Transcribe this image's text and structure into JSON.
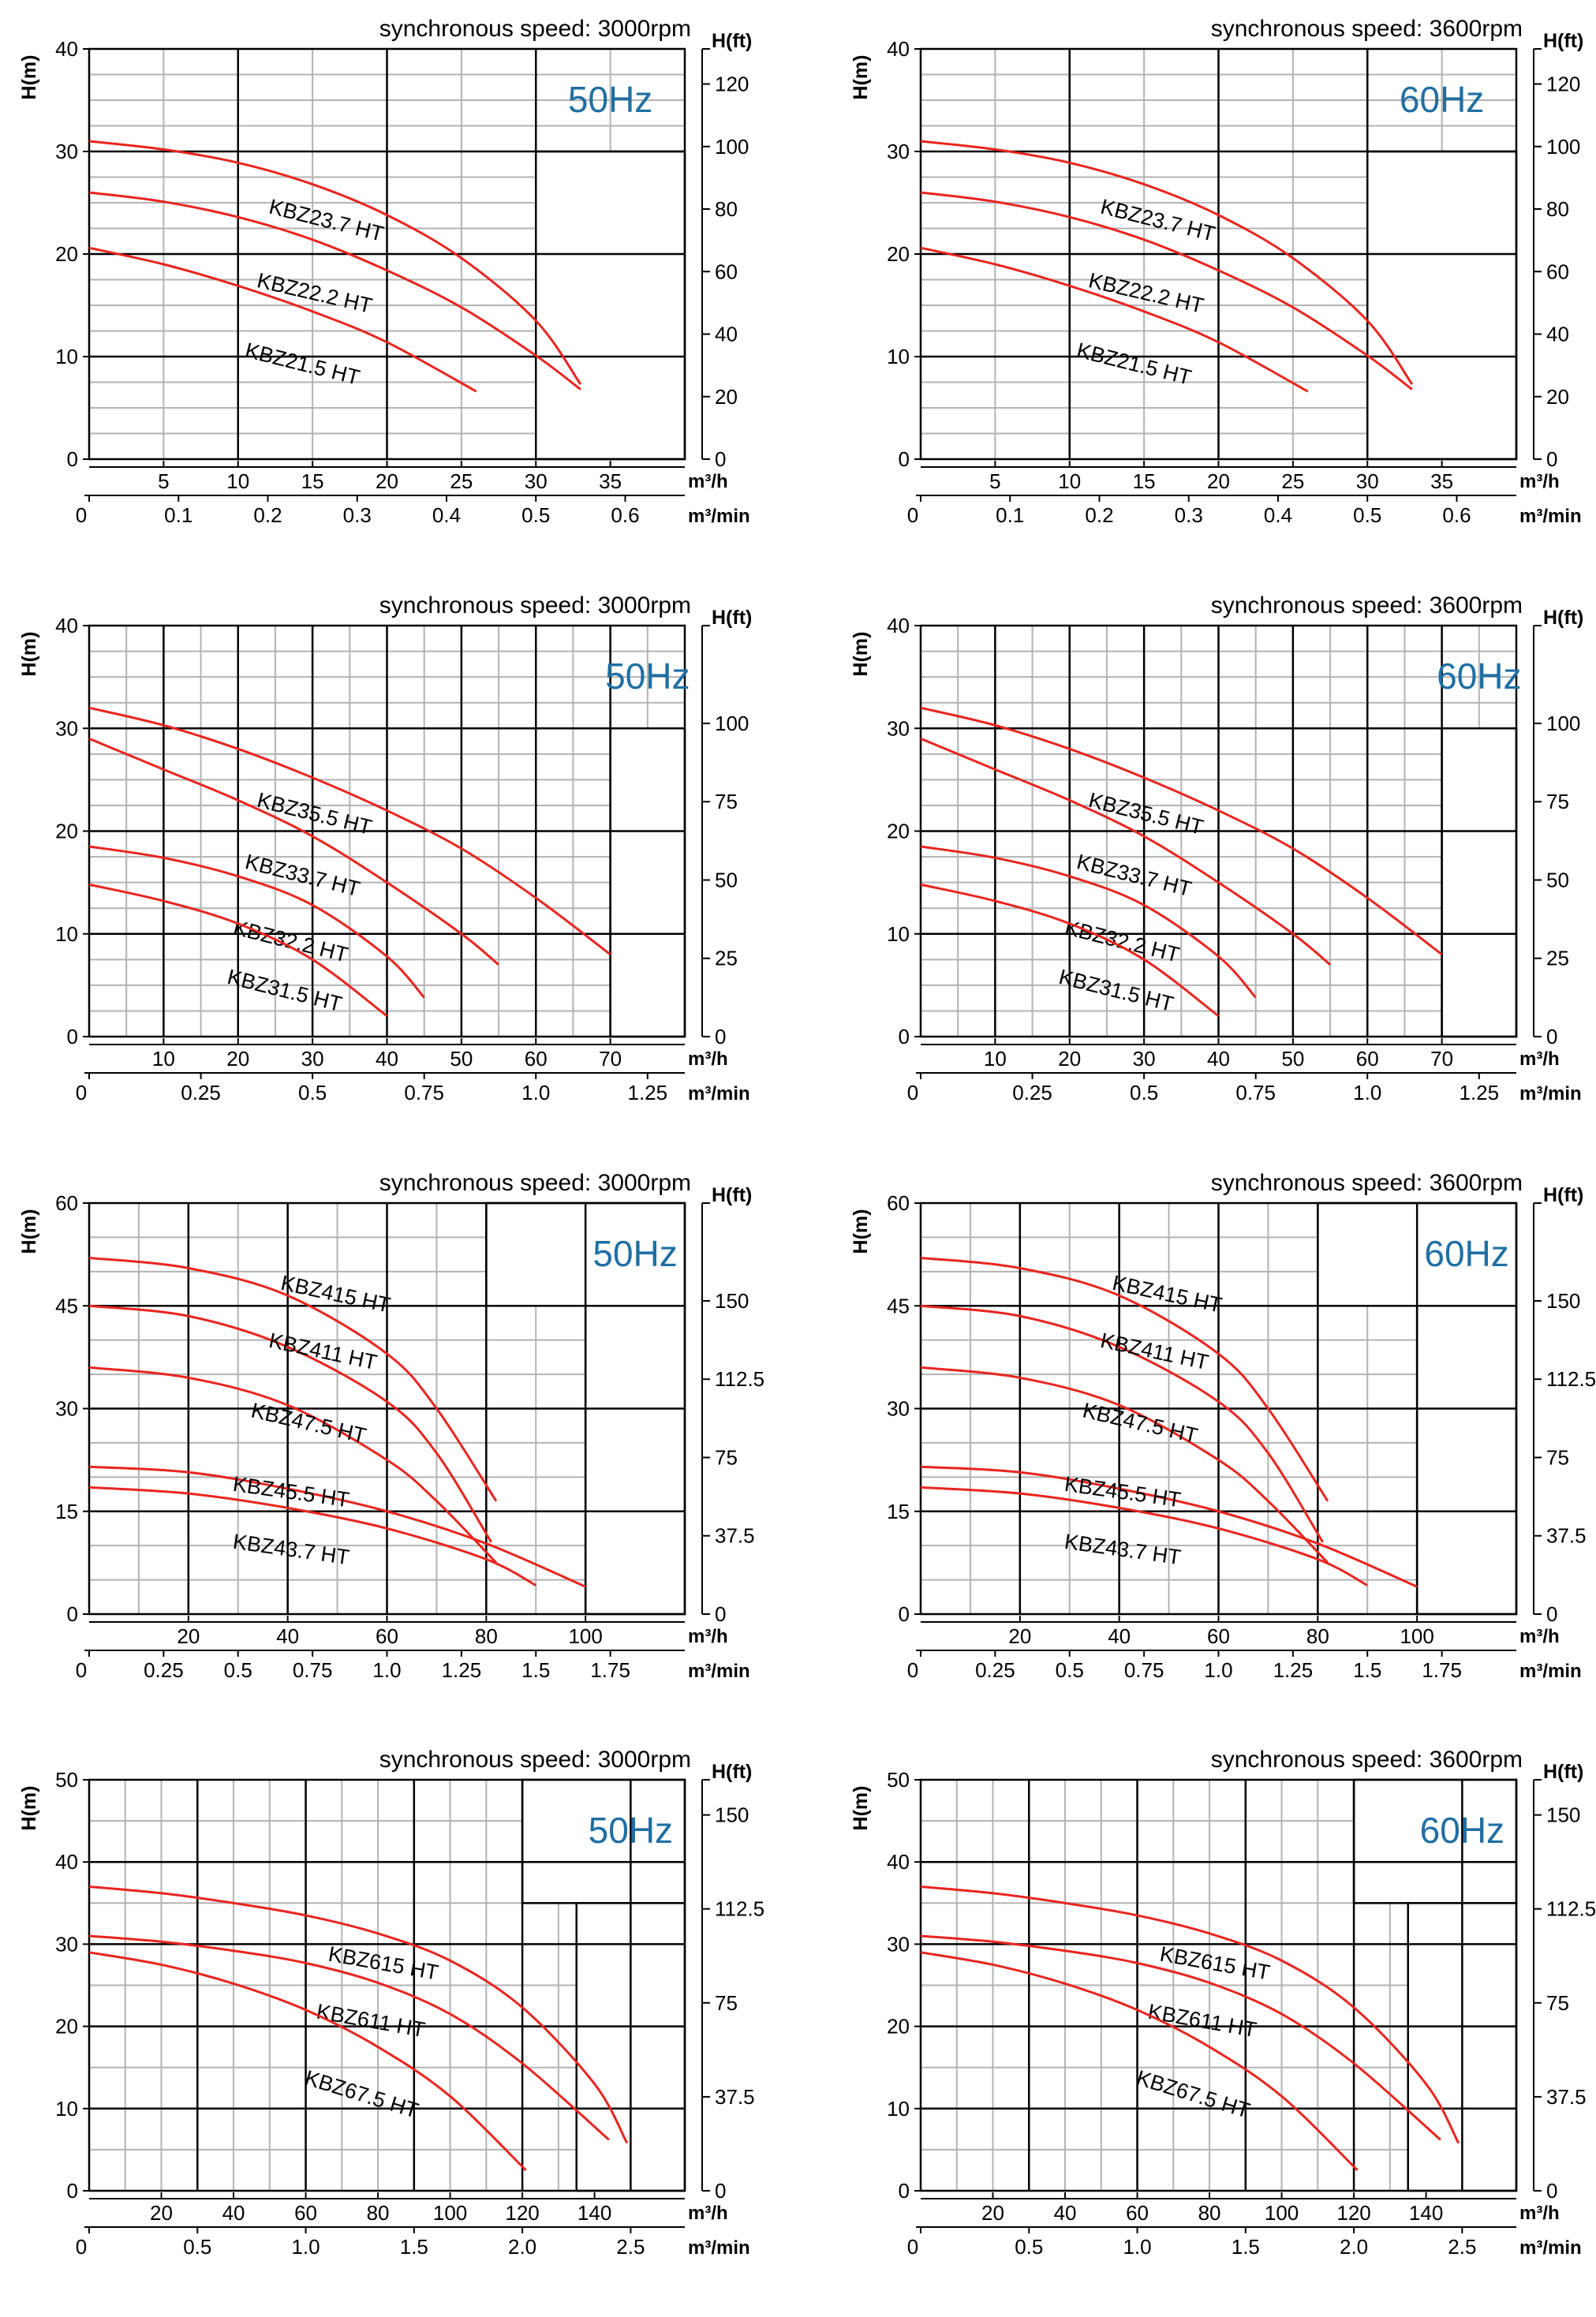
{
  "colors": {
    "curve": "#e8251f",
    "grid_major": "#000000",
    "grid_minor": "#b3b3b3",
    "freq_text": "#1f6fa3"
  },
  "chart_data": [
    {
      "type": "line",
      "speed_label": "synchronous speed: 3000rpm",
      "freq_label": "50Hz",
      "ylabel": "H(m)",
      "ylim": [
        0,
        40
      ],
      "yticks": [
        "0",
        "10",
        "20",
        "30",
        "40"
      ],
      "ylabel2": "H(ft)",
      "y2ticks": [
        {
          "v": 0,
          "t": "0"
        },
        {
          "v": 20,
          "t": "20"
        },
        {
          "v": 40,
          "t": "40"
        },
        {
          "v": 60,
          "t": "60"
        },
        {
          "v": 80,
          "t": "80"
        },
        {
          "v": 100,
          "t": "100"
        },
        {
          "v": 120,
          "t": "120"
        }
      ],
      "xlabel": "m³/h",
      "xlim": [
        0,
        40
      ],
      "xticks": [
        "5",
        "10",
        "15",
        "20",
        "25",
        "30",
        "35"
      ],
      "xlabel2": "m³/min",
      "x2ticks": [
        "0",
        "0.1",
        "0.2",
        "0.3",
        "0.4",
        "0.5",
        "0.6"
      ],
      "series": [
        {
          "name": "KBZ23.7 HT",
          "x": [
            0,
            5,
            10,
            15,
            20,
            25,
            30,
            33
          ],
          "y": [
            31,
            30.2,
            28.9,
            26.8,
            23.8,
            19.6,
            13.5,
            7.3
          ]
        },
        {
          "name": "KBZ22.2 HT",
          "x": [
            0,
            5,
            10,
            15,
            20,
            25,
            30,
            33
          ],
          "y": [
            26,
            25.1,
            23.6,
            21.4,
            18.4,
            14.8,
            10.1,
            6.8
          ]
        },
        {
          "name": "KBZ21.5 HT",
          "x": [
            0,
            5,
            10,
            15,
            20,
            26
          ],
          "y": [
            20.6,
            19,
            16.9,
            14.4,
            11.4,
            6.6
          ]
        }
      ]
    },
    {
      "type": "line",
      "speed_label": "synchronous speed: 3600rpm",
      "freq_label": "60Hz",
      "ylabel": "H(m)",
      "ylim": [
        0,
        40
      ],
      "yticks": [
        "0",
        "10",
        "20",
        "30",
        "40"
      ],
      "ylabel2": "H(ft)",
      "y2ticks": [
        {
          "v": 0,
          "t": "0"
        },
        {
          "v": 20,
          "t": "20"
        },
        {
          "v": 40,
          "t": "40"
        },
        {
          "v": 60,
          "t": "60"
        },
        {
          "v": 80,
          "t": "80"
        },
        {
          "v": 100,
          "t": "100"
        },
        {
          "v": 120,
          "t": "120"
        }
      ],
      "xlabel": "m³/h",
      "xlim": [
        0,
        40
      ],
      "xticks": [
        "5",
        "10",
        "15",
        "20",
        "25",
        "30",
        "35"
      ],
      "xlabel2": "m³/min",
      "x2ticks": [
        "0",
        "0.1",
        "0.2",
        "0.3",
        "0.4",
        "0.5",
        "0.6"
      ],
      "series": [
        {
          "name": "KBZ23.7 HT",
          "x": [
            0,
            5,
            10,
            15,
            20,
            25,
            30,
            33
          ],
          "y": [
            31,
            30.2,
            28.9,
            26.8,
            23.8,
            19.6,
            13.5,
            7.3
          ]
        },
        {
          "name": "KBZ22.2 HT",
          "x": [
            0,
            5,
            10,
            15,
            20,
            25,
            30,
            33
          ],
          "y": [
            26,
            25.1,
            23.6,
            21.4,
            18.4,
            14.8,
            10.1,
            6.8
          ]
        },
        {
          "name": "KBZ21.5 HT",
          "x": [
            0,
            5,
            10,
            15,
            20,
            26
          ],
          "y": [
            20.6,
            19,
            16.9,
            14.4,
            11.4,
            6.6
          ]
        }
      ]
    },
    {
      "type": "line",
      "speed_label": "synchronous speed: 3000rpm",
      "freq_label": "50Hz",
      "ylabel": "H(m)",
      "ylim": [
        0,
        40
      ],
      "yticks": [
        "0",
        "10",
        "20",
        "30",
        "40"
      ],
      "ylabel2": "H(ft)",
      "y2ticks": [
        {
          "v": 0,
          "t": "0"
        },
        {
          "v": 25,
          "t": "25"
        },
        {
          "v": 50,
          "t": "50"
        },
        {
          "v": 75,
          "t": "75"
        },
        {
          "v": 100,
          "t": "100"
        }
      ],
      "xlabel": "m³/h",
      "xlim": [
        0,
        80
      ],
      "xticks": [
        "10",
        "20",
        "30",
        "40",
        "50",
        "60",
        "70"
      ],
      "xlabel2": "m³/min",
      "x2ticks": [
        "0",
        "0.25",
        "0.5",
        "0.75",
        "1.0",
        "1.25"
      ],
      "series": [
        {
          "name": "KBZ35.5 HT",
          "x": [
            0,
            10,
            20,
            30,
            40,
            50,
            60,
            70
          ],
          "y": [
            32,
            30.3,
            28,
            25.2,
            22,
            18.3,
            13.5,
            8
          ]
        },
        {
          "name": "KBZ33.7 HT",
          "x": [
            0,
            10,
            20,
            30,
            40,
            50,
            55
          ],
          "y": [
            29,
            26,
            23,
            19.5,
            15,
            10,
            7
          ]
        },
        {
          "name": "KBZ32.2 HT",
          "x": [
            0,
            10,
            20,
            30,
            40,
            45
          ],
          "y": [
            18.5,
            17.4,
            15.6,
            12.8,
            7.8,
            3.8
          ]
        },
        {
          "name": "KBZ31.5 HT",
          "x": [
            0,
            10,
            20,
            30,
            40
          ],
          "y": [
            14.8,
            13.2,
            11,
            7.5,
            2
          ]
        }
      ]
    },
    {
      "type": "line",
      "speed_label": "synchronous speed: 3600rpm",
      "freq_label": "60Hz",
      "ylabel": "H(m)",
      "ylim": [
        0,
        40
      ],
      "yticks": [
        "0",
        "10",
        "20",
        "30",
        "40"
      ],
      "ylabel2": "H(ft)",
      "y2ticks": [
        {
          "v": 0,
          "t": "0"
        },
        {
          "v": 25,
          "t": "25"
        },
        {
          "v": 50,
          "t": "50"
        },
        {
          "v": 75,
          "t": "75"
        },
        {
          "v": 100,
          "t": "100"
        }
      ],
      "xlabel": "m³/h",
      "xlim": [
        0,
        80
      ],
      "xticks": [
        "10",
        "20",
        "30",
        "40",
        "50",
        "60",
        "70"
      ],
      "xlabel2": "m³/min",
      "x2ticks": [
        "0",
        "0.25",
        "0.5",
        "0.75",
        "1.0",
        "1.25"
      ],
      "series": [
        {
          "name": "KBZ35.5 HT",
          "x": [
            0,
            10,
            20,
            30,
            40,
            50,
            60,
            70
          ],
          "y": [
            32,
            30.3,
            28,
            25.2,
            22,
            18.3,
            13.5,
            8
          ]
        },
        {
          "name": "KBZ33.7 HT",
          "x": [
            0,
            10,
            20,
            30,
            40,
            50,
            55
          ],
          "y": [
            29,
            26,
            23,
            19.5,
            15,
            10,
            7
          ]
        },
        {
          "name": "KBZ32.2 HT",
          "x": [
            0,
            10,
            20,
            30,
            40,
            45
          ],
          "y": [
            18.5,
            17.4,
            15.6,
            12.8,
            7.8,
            3.8
          ]
        },
        {
          "name": "KBZ31.5 HT",
          "x": [
            0,
            10,
            20,
            30,
            40
          ],
          "y": [
            14.8,
            13.2,
            11,
            7.5,
            2
          ]
        }
      ]
    },
    {
      "type": "line",
      "speed_label": "synchronous speed: 3000rpm",
      "freq_label": "50Hz",
      "ylabel": "H(m)",
      "ylim": [
        0,
        60
      ],
      "yticks": [
        "0",
        "15",
        "30",
        "45",
        "60"
      ],
      "ylabel2": "H(ft)",
      "y2ticks": [
        {
          "v": 0,
          "t": "0"
        },
        {
          "v": 37.5,
          "t": "37.5"
        },
        {
          "v": 75,
          "t": "75"
        },
        {
          "v": 112.5,
          "t": "112.5"
        },
        {
          "v": 150,
          "t": "150"
        }
      ],
      "xlabel": "m³/h",
      "xlim": [
        0,
        120
      ],
      "xticks": [
        "20",
        "40",
        "60",
        "80",
        "100"
      ],
      "xlabel2": "m³/min",
      "x2ticks": [
        "0",
        "0.25",
        "0.5",
        "0.75",
        "1.0",
        "1.25",
        "1.5",
        "1.75"
      ],
      "series": [
        {
          "name": "KBZ415 HT",
          "x": [
            0,
            20,
            40,
            60,
            70,
            82
          ],
          "y": [
            52,
            50.5,
            46.5,
            38,
            30,
            16.5
          ]
        },
        {
          "name": "KBZ411 HT",
          "x": [
            0,
            20,
            40,
            60,
            70,
            81
          ],
          "y": [
            45,
            43.5,
            39,
            31,
            23.5,
            10.5
          ]
        },
        {
          "name": "KBZ47.5 HT",
          "x": [
            0,
            20,
            40,
            60,
            70,
            82
          ],
          "y": [
            36,
            34.5,
            30.5,
            22.5,
            16.5,
            7.5
          ]
        },
        {
          "name": "KBZ45.5 HT",
          "x": [
            0,
            20,
            40,
            60,
            80,
            100
          ],
          "y": [
            21.5,
            20.7,
            18.3,
            15,
            10.3,
            4
          ]
        },
        {
          "name": "KBZ43.7 HT",
          "x": [
            0,
            20,
            40,
            60,
            80,
            90
          ],
          "y": [
            18.5,
            17.6,
            15.5,
            12.5,
            8,
            4.2
          ]
        }
      ]
    },
    {
      "type": "line",
      "speed_label": "synchronous speed: 3600rpm",
      "freq_label": "60Hz",
      "ylabel": "H(m)",
      "ylim": [
        0,
        60
      ],
      "yticks": [
        "0",
        "15",
        "30",
        "45",
        "60"
      ],
      "ylabel2": "H(ft)",
      "y2ticks": [
        {
          "v": 0,
          "t": "0"
        },
        {
          "v": 37.5,
          "t": "37.5"
        },
        {
          "v": 75,
          "t": "75"
        },
        {
          "v": 112.5,
          "t": "112.5"
        },
        {
          "v": 150,
          "t": "150"
        }
      ],
      "xlabel": "m³/h",
      "xlim": [
        0,
        120
      ],
      "xticks": [
        "20",
        "40",
        "60",
        "80",
        "100"
      ],
      "xlabel2": "m³/min",
      "x2ticks": [
        "0",
        "0.25",
        "0.5",
        "0.75",
        "1.0",
        "1.25",
        "1.5",
        "1.75"
      ],
      "series": [
        {
          "name": "KBZ415 HT",
          "x": [
            0,
            20,
            40,
            60,
            70,
            82
          ],
          "y": [
            52,
            50.5,
            46.5,
            38,
            30,
            16.5
          ]
        },
        {
          "name": "KBZ411 HT",
          "x": [
            0,
            20,
            40,
            60,
            70,
            81
          ],
          "y": [
            45,
            43.5,
            39,
            31,
            23.5,
            10.5
          ]
        },
        {
          "name": "KBZ47.5 HT",
          "x": [
            0,
            20,
            40,
            60,
            70,
            82
          ],
          "y": [
            36,
            34.5,
            30.5,
            22.5,
            16.5,
            7.5
          ]
        },
        {
          "name": "KBZ45.5 HT",
          "x": [
            0,
            20,
            40,
            60,
            80,
            100
          ],
          "y": [
            21.5,
            20.7,
            18.3,
            15,
            10.3,
            4
          ]
        },
        {
          "name": "KBZ43.7 HT",
          "x": [
            0,
            20,
            40,
            60,
            80,
            90
          ],
          "y": [
            18.5,
            17.6,
            15.5,
            12.5,
            8,
            4.2
          ]
        }
      ]
    },
    {
      "type": "line",
      "speed_label": "synchronous speed: 3000rpm",
      "freq_label": "50Hz",
      "ylabel": "H(m)",
      "ylim": [
        0,
        50
      ],
      "yticks": [
        "0",
        "10",
        "20",
        "30",
        "40",
        "50"
      ],
      "ylabel2": "H(ft)",
      "y2ticks": [
        {
          "v": 0,
          "t": "0"
        },
        {
          "v": 37.5,
          "t": "37.5"
        },
        {
          "v": 75,
          "t": "75"
        },
        {
          "v": 112.5,
          "t": "112.5"
        },
        {
          "v": 150,
          "t": "150"
        }
      ],
      "xlabel": "m³/h",
      "xlim": [
        0,
        165
      ],
      "xticks": [
        "20",
        "40",
        "60",
        "80",
        "100",
        "120",
        "140"
      ],
      "xlabel2": "m³/min",
      "x2ticks": [
        "0",
        "0.5",
        "1.0",
        "1.5",
        "2.0",
        "2.5"
      ],
      "series": [
        {
          "name": "KBZ615 HT",
          "x": [
            0,
            20,
            40,
            60,
            80,
            100,
            120,
            140,
            149
          ],
          "y": [
            37,
            36.2,
            35,
            33.5,
            31.3,
            28,
            22.3,
            13,
            5.8
          ]
        },
        {
          "name": "KBZ611 HT",
          "x": [
            0,
            20,
            40,
            60,
            80,
            100,
            120,
            144
          ],
          "y": [
            31,
            30.3,
            29.2,
            27.7,
            25.3,
            21.5,
            15.5,
            6.2
          ]
        },
        {
          "name": "KBZ67.5 HT",
          "x": [
            0,
            20,
            40,
            60,
            80,
            100,
            121
          ],
          "y": [
            29,
            27.5,
            25.2,
            22,
            17.5,
            11.5,
            2.5
          ]
        }
      ]
    },
    {
      "type": "line",
      "speed_label": "synchronous speed: 3600rpm",
      "freq_label": "60Hz",
      "ylabel": "H(m)",
      "ylim": [
        0,
        50
      ],
      "yticks": [
        "0",
        "10",
        "20",
        "30",
        "40",
        "50"
      ],
      "ylabel2": "H(ft)",
      "y2ticks": [
        {
          "v": 0,
          "t": "0"
        },
        {
          "v": 37.5,
          "t": "37.5"
        },
        {
          "v": 75,
          "t": "75"
        },
        {
          "v": 112.5,
          "t": "112.5"
        },
        {
          "v": 150,
          "t": "150"
        }
      ],
      "xlabel": "m³/h",
      "xlim": [
        0,
        165
      ],
      "xticks": [
        "20",
        "40",
        "60",
        "80",
        "100",
        "120",
        "140"
      ],
      "xlabel2": "m³/min",
      "x2ticks": [
        "0",
        "0.5",
        "1.0",
        "1.5",
        "2.0",
        "2.5"
      ],
      "series": [
        {
          "name": "KBZ615 HT",
          "x": [
            0,
            20,
            40,
            60,
            80,
            100,
            120,
            140,
            149
          ],
          "y": [
            37,
            36.2,
            35,
            33.5,
            31.3,
            28,
            22.3,
            13,
            5.8
          ]
        },
        {
          "name": "KBZ611 HT",
          "x": [
            0,
            20,
            40,
            60,
            80,
            100,
            120,
            144
          ],
          "y": [
            31,
            30.3,
            29.2,
            27.7,
            25.3,
            21.5,
            15.5,
            6.2
          ]
        },
        {
          "name": "KBZ67.5 HT",
          "x": [
            0,
            20,
            40,
            60,
            80,
            100,
            121
          ],
          "y": [
            29,
            27.5,
            25.2,
            22,
            17.5,
            11.5,
            2.5
          ]
        }
      ]
    }
  ]
}
